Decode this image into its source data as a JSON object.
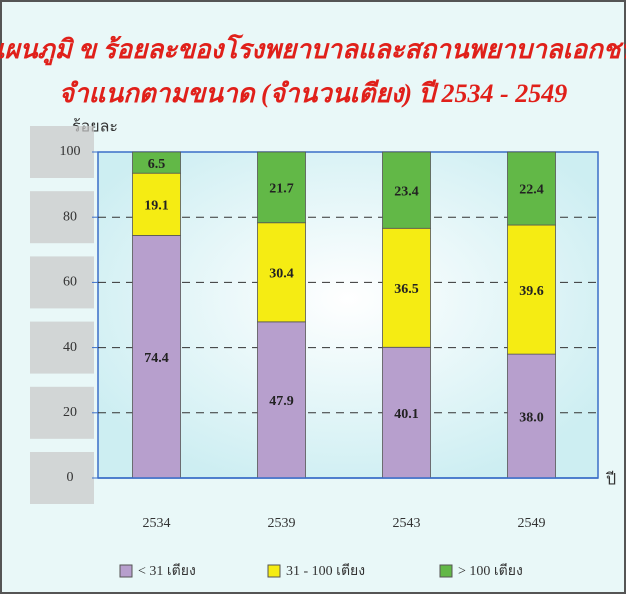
{
  "chart_data": {
    "type": "stacked_bar",
    "title": [
      "แผนภูมิ ข ร้อยละของโรงพยาบาลและสถานพยาบาลเอกชน",
      "จำแนกตามขนาด  (จำนวนเตียง) ปี 2534 - 2549"
    ],
    "y_axis_label": "ร้อยละ",
    "x_axis_label": "ปี",
    "categories": [
      "2534",
      "2539",
      "2543",
      "2549"
    ],
    "series": [
      {
        "name": "< 31 เตียง",
        "color": "#b79fcd",
        "values": [
          74.4,
          47.9,
          40.1,
          38.0
        ],
        "value_labels": [
          "74.4",
          "47.9",
          "40.1",
          "38.0"
        ]
      },
      {
        "name": "31 - 100 เตียง",
        "color": "#f5ec13",
        "values": [
          19.1,
          30.4,
          36.5,
          39.6
        ],
        "value_labels": [
          "19.1",
          "30.4",
          "36.5",
          "39.6"
        ]
      },
      {
        "name": "> 100 เตียง",
        "color": "#62b847",
        "values": [
          6.5,
          21.7,
          23.4,
          22.4
        ],
        "value_labels": [
          "6.5",
          "21.7",
          "23.4",
          "22.4"
        ]
      }
    ],
    "ylim": [
      0,
      100
    ],
    "yticks": [
      0,
      20,
      40,
      60,
      80,
      100
    ],
    "grid": true
  }
}
